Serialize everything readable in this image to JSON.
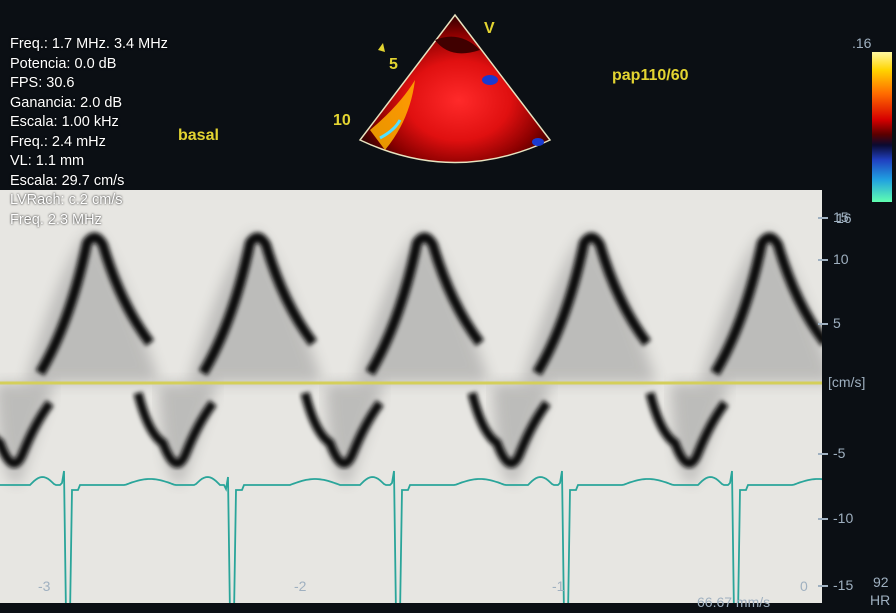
{
  "params": [
    "Freq.: 1.7 MHz. 3.4 MHz",
    "Potencia: 0.0 dB",
    "FPS: 30.6",
    "Ganancia: 2.0 dB",
    "Escala: 1.00 kHz",
    "Freq.: 2.4 mHz",
    "VL: 1.1 mm",
    "Escala: 29.7 cm/s",
    "LVRach: c.2 cm/s",
    "Freq. 2.3 MHz"
  ],
  "labels": {
    "basal": "basal",
    "pressure": "pap110/60",
    "view": "V",
    "depth_5": "5",
    "depth_10": "10"
  },
  "colorbar": {
    "top": ".16",
    "bottom": "16"
  },
  "velocity_scale": {
    "unit": "[cm/s]",
    "ticks": [
      "15",
      "10",
      "5",
      "-5",
      "-10",
      "-15"
    ]
  },
  "time_axis": {
    "ticks": [
      "-3",
      "-2",
      "-1",
      "0"
    ],
    "sweep_speed": "66.67 mm/s"
  },
  "heart_rate": {
    "value": "92",
    "label": "HR"
  },
  "colors": {
    "background": "#0b0f14",
    "doppler_panel": "#e7e6e2",
    "baseline": "#d4cf5a",
    "ecg": "#2aa59a",
    "overlay_text": "#e3d431"
  }
}
